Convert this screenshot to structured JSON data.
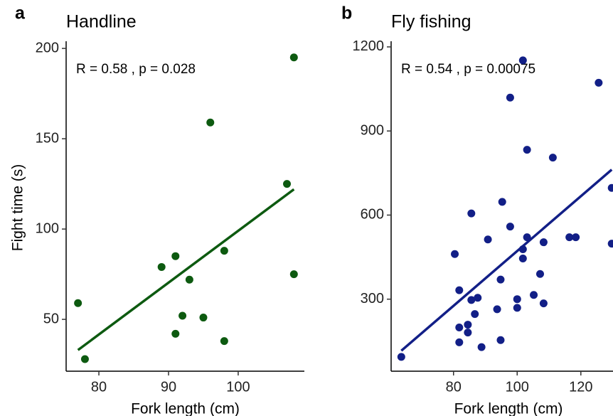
{
  "chart_data": [
    {
      "type": "scatter",
      "panel": "a",
      "title": "Handline",
      "annotation": "R = 0.58 , p = 0.028",
      "x_label": "Fork length (cm)",
      "y_label": "Fight time (s)",
      "color": "#0d5a10",
      "x": [
        77,
        78,
        89,
        91,
        91,
        92,
        93,
        95,
        96,
        98,
        98,
        107,
        108,
        108
      ],
      "y": [
        59,
        28,
        79,
        85,
        42,
        52,
        72,
        51,
        159,
        88,
        38,
        125,
        195,
        75
      ],
      "fit": {
        "x": [
          77,
          108
        ],
        "y": [
          33,
          122
        ]
      },
      "xlim": [
        75.3,
        109.5
      ],
      "ylim": [
        21.3,
        202.4
      ],
      "xticks": [
        80,
        90,
        100
      ],
      "yticks": [
        50,
        100,
        150,
        200
      ]
    },
    {
      "type": "scatter",
      "panel": "b",
      "title": "Fly fishing",
      "annotation": "R = 0.54 , p = 0.00075",
      "x_label": "Fork length (cm)",
      "color": "#121f87",
      "x": [
        63.6,
        80.4,
        81.8,
        81.8,
        81.8,
        84.5,
        84.5,
        85.6,
        85.6,
        86.7,
        87.6,
        88.8,
        90.8,
        93.7,
        94.8,
        94.8,
        95.3,
        97.8,
        97.8,
        100,
        100,
        101.8,
        101.8,
        101.8,
        103.1,
        103.1,
        105.2,
        107.2,
        108.3,
        108.3,
        111.2,
        116.4,
        118.4,
        125.6,
        129.7,
        129.7
      ],
      "y": [
        94,
        461,
        332,
        199,
        146,
        209,
        181,
        606,
        297,
        247,
        305,
        129,
        513,
        264,
        370,
        154,
        647,
        559,
        1019,
        300,
        269,
        478,
        445,
        1152,
        521,
        833,
        315,
        390,
        285,
        503,
        805,
        521,
        521,
        1072,
        697,
        498
      ],
      "fit": {
        "x": [
          63.6,
          129.7
        ],
        "y": [
          116,
          762
        ]
      },
      "xlim": [
        60.4,
        130.1
      ],
      "ylim": [
        43,
        1210
      ],
      "xticks": [
        80,
        100,
        120
      ],
      "yticks": [
        300,
        600,
        900,
        1200
      ]
    }
  ]
}
